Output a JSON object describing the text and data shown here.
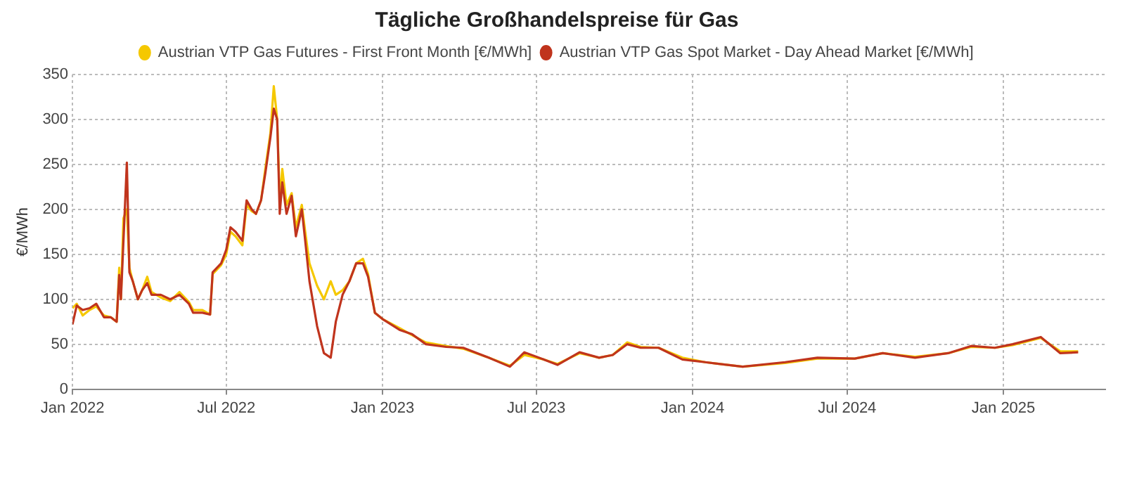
{
  "chart_data": {
    "type": "line",
    "title": "Tägliche Großhandelspreise für Gas",
    "ylabel": "€/MWh",
    "x": [
      "2022-01-01",
      "2022-01-06",
      "2022-01-13",
      "2022-01-21",
      "2022-01-29",
      "2022-02-07",
      "2022-02-15",
      "2022-02-22",
      "2022-02-25",
      "2022-02-27",
      "2022-03-02",
      "2022-03-06",
      "2022-03-09",
      "2022-03-13",
      "2022-03-19",
      "2022-03-24",
      "2022-03-30",
      "2022-04-04",
      "2022-04-15",
      "2022-04-26",
      "2022-05-07",
      "2022-05-18",
      "2022-05-23",
      "2022-06-03",
      "2022-06-12",
      "2022-06-15",
      "2022-06-25",
      "2022-07-01",
      "2022-07-06",
      "2022-07-12",
      "2022-07-20",
      "2022-07-25",
      "2022-07-31",
      "2022-08-05",
      "2022-08-11",
      "2022-08-16",
      "2022-08-22",
      "2022-08-26",
      "2022-08-30",
      "2022-09-02",
      "2022-09-05",
      "2022-09-10",
      "2022-09-16",
      "2022-09-21",
      "2022-09-28",
      "2022-10-02",
      "2022-10-07",
      "2022-10-16",
      "2022-10-24",
      "2022-11-01",
      "2022-11-07",
      "2022-11-15",
      "2022-11-23",
      "2022-12-01",
      "2022-12-09",
      "2022-12-15",
      "2022-12-23",
      "2023-01-01",
      "2023-01-21",
      "2023-02-05",
      "2023-02-21",
      "2023-03-17",
      "2023-04-06",
      "2023-05-06",
      "2023-05-31",
      "2023-06-17",
      "2023-07-10",
      "2023-07-26",
      "2023-08-21",
      "2023-09-13",
      "2023-09-29",
      "2023-10-16",
      "2023-11-01",
      "2023-11-22",
      "2023-12-20",
      "2024-01-16",
      "2024-02-29",
      "2024-04-19",
      "2024-05-27",
      "2024-07-10",
      "2024-08-12",
      "2024-09-19",
      "2024-10-28",
      "2024-11-24",
      "2024-12-22",
      "2025-01-12",
      "2025-02-14",
      "2025-03-09",
      "2025-03-30"
    ],
    "series": [
      {
        "name": "Austrian VTP Gas Futures - First Front Month [€/MWh]",
        "color": "#f5c800",
        "values": [
          90,
          95,
          82,
          88,
          92,
          82,
          80,
          75,
          135,
          100,
          190,
          200,
          135,
          120,
          100,
          110,
          125,
          108,
          102,
          98,
          108,
          97,
          88,
          88,
          83,
          128,
          138,
          150,
          175,
          170,
          160,
          205,
          198,
          195,
          210,
          245,
          285,
          337,
          300,
          210,
          245,
          205,
          218,
          180,
          205,
          175,
          140,
          115,
          100,
          120,
          105,
          110,
          120,
          140,
          145,
          128,
          85,
          78,
          68,
          60,
          52,
          48,
          45,
          35,
          26,
          38,
          33,
          28,
          40,
          35,
          38,
          52,
          47,
          46,
          35,
          30,
          25,
          29,
          34,
          34,
          40,
          36,
          40,
          47,
          46,
          49,
          57,
          42,
          42
        ]
      },
      {
        "name": "Austrian VTP Gas Spot Market - Day Ahead Market [€/MWh]",
        "color": "#c0341d",
        "values": [
          72,
          93,
          88,
          90,
          95,
          80,
          80,
          75,
          127,
          100,
          165,
          252,
          130,
          120,
          100,
          110,
          118,
          105,
          105,
          100,
          105,
          95,
          85,
          85,
          83,
          130,
          140,
          155,
          180,
          175,
          165,
          210,
          200,
          195,
          210,
          240,
          280,
          312,
          300,
          195,
          230,
          195,
          215,
          170,
          200,
          165,
          120,
          70,
          40,
          35,
          75,
          105,
          120,
          140,
          140,
          125,
          85,
          78,
          66,
          61,
          50,
          47,
          46,
          35,
          25,
          41,
          33,
          27,
          41,
          35,
          38,
          50,
          46,
          46,
          33,
          30,
          25,
          30,
          35,
          34,
          40,
          35,
          40,
          48,
          46,
          50,
          58,
          40,
          41
        ]
      }
    ],
    "xlim": [
      "2022-01-01",
      "2025-05-01"
    ],
    "xticks": [
      {
        "value": "2022-01-01",
        "label": "Jan 2022"
      },
      {
        "value": "2022-07-01",
        "label": "Jul 2022"
      },
      {
        "value": "2023-01-01",
        "label": "Jan 2023"
      },
      {
        "value": "2023-07-01",
        "label": "Jul 2023"
      },
      {
        "value": "2024-01-01",
        "label": "Jan 2024"
      },
      {
        "value": "2024-07-01",
        "label": "Jul 2024"
      },
      {
        "value": "2025-01-01",
        "label": "Jan 2025"
      }
    ],
    "ylim": [
      0,
      350
    ],
    "yticks": [
      0,
      50,
      100,
      150,
      200,
      250,
      300,
      350
    ],
    "grid": true,
    "legend": "top",
    "marker": "none",
    "line_style": "solid"
  }
}
